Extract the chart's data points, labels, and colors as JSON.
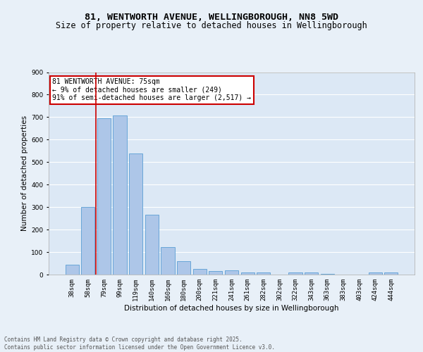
{
  "title1": "81, WENTWORTH AVENUE, WELLINGBOROUGH, NN8 5WD",
  "title2": "Size of property relative to detached houses in Wellingborough",
  "xlabel": "Distribution of detached houses by size in Wellingborough",
  "ylabel": "Number of detached properties",
  "categories": [
    "38sqm",
    "58sqm",
    "79sqm",
    "99sqm",
    "119sqm",
    "140sqm",
    "160sqm",
    "180sqm",
    "200sqm",
    "221sqm",
    "241sqm",
    "261sqm",
    "282sqm",
    "302sqm",
    "322sqm",
    "343sqm",
    "363sqm",
    "383sqm",
    "403sqm",
    "424sqm",
    "444sqm"
  ],
  "values": [
    45,
    300,
    695,
    707,
    537,
    265,
    122,
    58,
    25,
    15,
    18,
    8,
    10,
    0,
    8,
    10,
    3,
    0,
    0,
    8,
    10
  ],
  "bar_color": "#adc6e8",
  "bar_edge_color": "#5a9fd4",
  "background_color": "#e8f0f8",
  "plot_bg_color": "#dce8f5",
  "grid_color": "#ffffff",
  "annotation_text": "81 WENTWORTH AVENUE: 75sqm\n← 9% of detached houses are smaller (249)\n91% of semi-detached houses are larger (2,517) →",
  "annotation_box_color": "#ffffff",
  "annotation_box_edge": "#cc0000",
  "vline_color": "#cc0000",
  "ylim": [
    0,
    900
  ],
  "yticks": [
    0,
    100,
    200,
    300,
    400,
    500,
    600,
    700,
    800,
    900
  ],
  "footer": "Contains HM Land Registry data © Crown copyright and database right 2025.\nContains public sector information licensed under the Open Government Licence v3.0.",
  "title1_fontsize": 9.5,
  "title2_fontsize": 8.5,
  "xlabel_fontsize": 7.5,
  "ylabel_fontsize": 7.5,
  "tick_fontsize": 6.5,
  "annotation_fontsize": 7,
  "footer_fontsize": 5.5
}
